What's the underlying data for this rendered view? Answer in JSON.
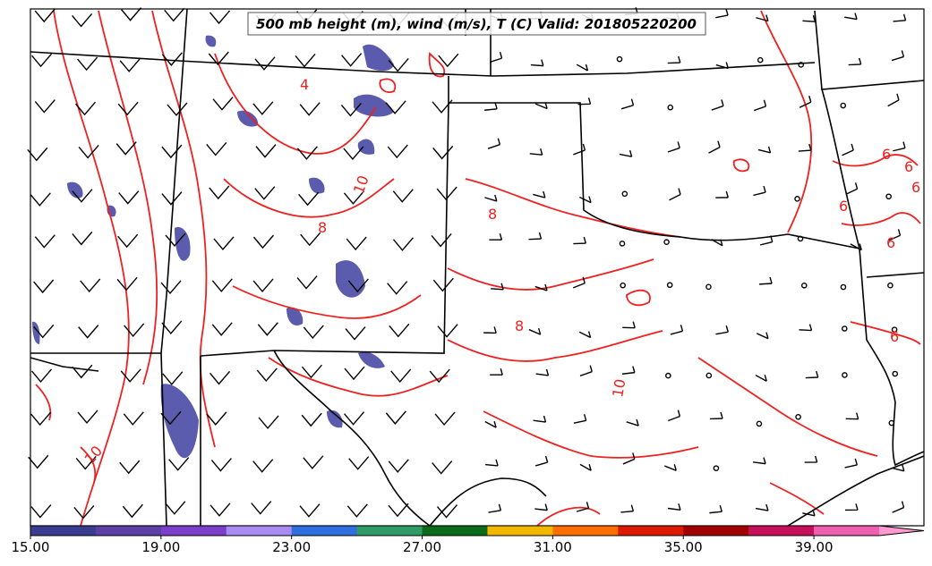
{
  "title": "500 mb height (m), wind (m/s), T (C) Valid: 201805220200",
  "colorbar": {
    "ticks": [
      "15.00",
      "19.00",
      "23.00",
      "27.00",
      "31.00",
      "35.00",
      "39.00"
    ],
    "colors": [
      "#3a3d8f",
      "#5c3fa7",
      "#7b3fc9",
      "#a98cf3",
      "#2f6fe0",
      "#2e9a66",
      "#0b6b1a",
      "#f2b800",
      "#ff6f00",
      "#dd1a00",
      "#a00000",
      "#c8105a",
      "#f060b0",
      "#ff9ad0"
    ]
  },
  "contour_labels": {
    "ok_panhandle": "10",
    "nm_east": "8",
    "oklahoma_west": "8",
    "texas_central": "8",
    "texas_south": "10",
    "mexico_west": "10",
    "colorado": "4",
    "east_6a": "6",
    "east_6b": "6",
    "east_6c": "6",
    "east_6d": "6",
    "east_6e": "6",
    "east_6f": "6"
  },
  "colors": {
    "contour": "#ee2020",
    "border": "#000000",
    "shading": "#4a4aa6"
  }
}
